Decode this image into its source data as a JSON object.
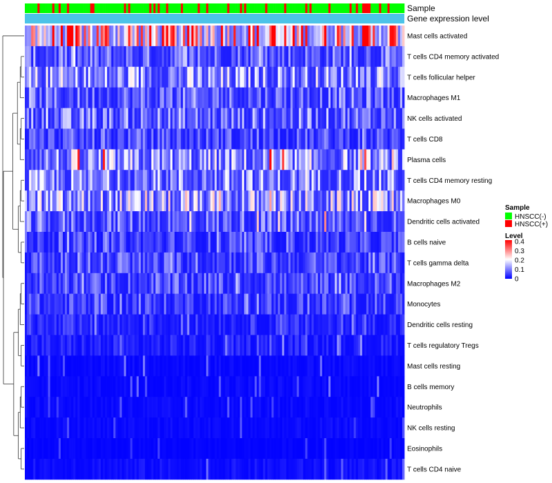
{
  "colors": {
    "hnscc_neg": "#00ff00",
    "hnscc_pos": "#ff0000",
    "gene_bar": "#4cc3e8",
    "low": "#0000ff",
    "mid": "#ffffff",
    "high": "#ff0000",
    "tree": "#333333"
  },
  "chart_data": {
    "type": "heatmap",
    "top_annotations": {
      "sample": "Sample",
      "gene_expression": "Gene expression level"
    },
    "rows": [
      "Mast cells activated",
      "T cells CD4 memory activated",
      "T cells follicular helper",
      "Macrophages M1",
      "NK cells activated",
      "T cells CD8",
      "Plasma cells",
      "T cells CD4 memory resting",
      "Macrophages M0",
      "Dendritic cells activated",
      "B cells naive",
      "T cells gamma delta",
      "Macrophages M2",
      "Monocytes",
      "Dendritic cells resting",
      "T cells regulatory  Tregs",
      "Mast cells resting",
      "B cells memory",
      "Neutrophils",
      "NK cells resting",
      "Eosinophils",
      "T cells CD4 naive"
    ],
    "row_mean_levels": [
      0.3,
      0.09,
      0.13,
      0.09,
      0.1,
      0.07,
      0.13,
      0.12,
      0.14,
      0.09,
      0.06,
      0.07,
      0.07,
      0.06,
      0.04,
      0.03,
      0.01,
      0.01,
      0.01,
      0.01,
      0.005,
      0.015
    ],
    "row_max_levels": [
      0.4,
      0.2,
      0.22,
      0.18,
      0.2,
      0.16,
      0.4,
      0.22,
      0.3,
      0.3,
      0.16,
      0.16,
      0.16,
      0.14,
      0.12,
      0.12,
      0.1,
      0.1,
      0.08,
      0.08,
      0.06,
      0.12
    ],
    "n_samples": 180,
    "hnscc_pos_fraction": 0.22,
    "color_scale": {
      "min": 0,
      "max": 0.4,
      "ticks": [
        0,
        0.1,
        0.2,
        0.3,
        0.4
      ]
    },
    "legend": {
      "sample_title": "Sample",
      "sample_entries": [
        "HNSCC(-)",
        "HNSCC(+)"
      ],
      "level_title": "Level",
      "level_tick_labels": [
        "0.4",
        "0.3",
        "0.2",
        "0.1",
        "0"
      ]
    }
  }
}
